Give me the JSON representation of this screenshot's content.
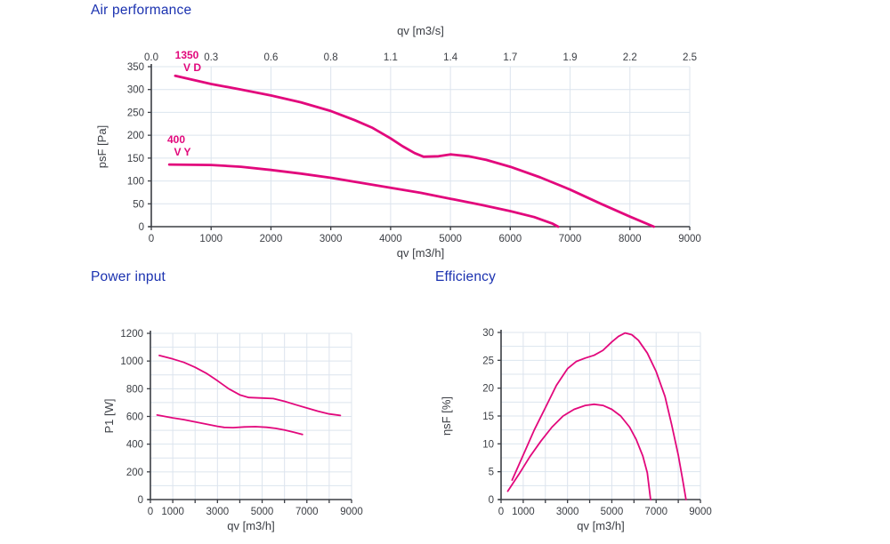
{
  "colors": {
    "title": "#1b32b0",
    "curve": "#e2087c",
    "grid": "#dce4ee",
    "axis": "#3b3e44",
    "tick_text": "#3b3e44"
  },
  "chart_data": [
    {
      "id": "air",
      "type": "line",
      "title": "Air performance",
      "xlabel": "qv [m3/h]",
      "xlabel_top": "qv [m3/s]",
      "ylabel": "psF [Pa]",
      "xlim": [
        0,
        9000
      ],
      "ylim": [
        0,
        350
      ],
      "x_grid_step": 1000,
      "y_grid_step": 50,
      "x_tick_mark_step": 1000,
      "grid": true,
      "legend_position": "on-curve",
      "x_ticks": [
        {
          "v": 0,
          "label": "0"
        },
        {
          "v": 1000,
          "label": "1000"
        },
        {
          "v": 2000,
          "label": "2000"
        },
        {
          "v": 3000,
          "label": "3000"
        },
        {
          "v": 4000,
          "label": "4000"
        },
        {
          "v": 5000,
          "label": "5000"
        },
        {
          "v": 6000,
          "label": "6000"
        },
        {
          "v": 7000,
          "label": "7000"
        },
        {
          "v": 8000,
          "label": "8000"
        },
        {
          "v": 9000,
          "label": "9000"
        }
      ],
      "x_top_ticks": [
        {
          "v": 0,
          "label": "0.0"
        },
        {
          "v": 1000,
          "label": "0.3"
        },
        {
          "v": 2000,
          "label": "0.6"
        },
        {
          "v": 3000,
          "label": "0.8"
        },
        {
          "v": 4000,
          "label": "1.1"
        },
        {
          "v": 5000,
          "label": "1.4"
        },
        {
          "v": 6000,
          "label": "1.7"
        },
        {
          "v": 7000,
          "label": "1.9"
        },
        {
          "v": 8000,
          "label": "2.2"
        },
        {
          "v": 9000,
          "label": "2.5"
        }
      ],
      "y_ticks": [
        {
          "v": 0,
          "label": "0"
        },
        {
          "v": 50,
          "label": "50"
        },
        {
          "v": 100,
          "label": "100"
        },
        {
          "v": 150,
          "label": "150"
        },
        {
          "v": 200,
          "label": "200"
        },
        {
          "v": 250,
          "label": "250"
        },
        {
          "v": 300,
          "label": "300"
        },
        {
          "v": 350,
          "label": "350"
        }
      ],
      "series": [
        {
          "name": "1350 V D",
          "label_lines": [
            "1350",
            "V D"
          ],
          "points": [
            [
              400,
              330
            ],
            [
              1000,
              312
            ],
            [
              1500,
              300
            ],
            [
              2000,
              287
            ],
            [
              2500,
              272
            ],
            [
              3000,
              253
            ],
            [
              3400,
              233
            ],
            [
              3700,
              216
            ],
            [
              4000,
              193
            ],
            [
              4200,
              176
            ],
            [
              4400,
              161
            ],
            [
              4550,
              153
            ],
            [
              4800,
              154
            ],
            [
              5000,
              158
            ],
            [
              5300,
              154
            ],
            [
              5600,
              146
            ],
            [
              6000,
              131
            ],
            [
              6500,
              108
            ],
            [
              7000,
              81
            ],
            [
              7500,
              51
            ],
            [
              8000,
              22
            ],
            [
              8400,
              0
            ]
          ]
        },
        {
          "name": "400 V Y",
          "label_lines": [
            "400",
            "V Y"
          ],
          "points": [
            [
              300,
              136
            ],
            [
              1000,
              135
            ],
            [
              1500,
              131
            ],
            [
              2000,
              124
            ],
            [
              2500,
              116
            ],
            [
              3000,
              107
            ],
            [
              3500,
              96
            ],
            [
              4000,
              85
            ],
            [
              4500,
              74
            ],
            [
              5000,
              61
            ],
            [
              5500,
              48
            ],
            [
              6000,
              34
            ],
            [
              6400,
              21
            ],
            [
              6700,
              7
            ],
            [
              6800,
              0
            ]
          ]
        }
      ]
    },
    {
      "id": "power",
      "type": "line",
      "title": "Power input",
      "xlabel": "qv [m3/h]",
      "ylabel": "P1 [W]",
      "xlim": [
        0,
        9000
      ],
      "ylim": [
        0,
        1200
      ],
      "x_grid_step": 1000,
      "y_grid_step": 100,
      "x_tick_mark_step": 1000,
      "grid": true,
      "x_ticks": [
        {
          "v": 0,
          "label": "0"
        },
        {
          "v": 1000,
          "label": "1000"
        },
        {
          "v": 3000,
          "label": "3000"
        },
        {
          "v": 5000,
          "label": "5000"
        },
        {
          "v": 7000,
          "label": "7000"
        },
        {
          "v": 9000,
          "label": "9000"
        }
      ],
      "y_ticks": [
        {
          "v": 0,
          "label": "0"
        },
        {
          "v": 200,
          "label": "200"
        },
        {
          "v": 400,
          "label": "400"
        },
        {
          "v": 600,
          "label": "600"
        },
        {
          "v": 800,
          "label": "800"
        },
        {
          "v": 1000,
          "label": "1000"
        },
        {
          "v": 1200,
          "label": "1200"
        }
      ],
      "series": [
        {
          "name": "1350 V D",
          "label_lines": [],
          "points": [
            [
              400,
              1040
            ],
            [
              1000,
              1015
            ],
            [
              1500,
              990
            ],
            [
              2000,
              955
            ],
            [
              2500,
              912
            ],
            [
              3000,
              858
            ],
            [
              3500,
              800
            ],
            [
              4000,
              756
            ],
            [
              4400,
              737
            ],
            [
              5000,
              733
            ],
            [
              5500,
              729
            ],
            [
              6000,
              709
            ],
            [
              6500,
              685
            ],
            [
              7000,
              661
            ],
            [
              7500,
              638
            ],
            [
              8000,
              618
            ],
            [
              8500,
              607
            ]
          ]
        },
        {
          "name": "400 V Y",
          "label_lines": [],
          "points": [
            [
              300,
              610
            ],
            [
              1000,
              590
            ],
            [
              1500,
              577
            ],
            [
              2000,
              561
            ],
            [
              2500,
              545
            ],
            [
              3000,
              529
            ],
            [
              3300,
              521
            ],
            [
              3700,
              519
            ],
            [
              4200,
              524
            ],
            [
              4700,
              526
            ],
            [
              5200,
              522
            ],
            [
              5600,
              514
            ],
            [
              6000,
              502
            ],
            [
              6400,
              487
            ],
            [
              6800,
              470
            ]
          ]
        }
      ]
    },
    {
      "id": "eff",
      "type": "line",
      "title": "Efficiency",
      "xlabel": "qv [m3/h]",
      "ylabel": "ηsF [%]",
      "xlim": [
        0,
        9000
      ],
      "ylim": [
        0,
        30
      ],
      "x_grid_step": 1000,
      "y_grid_step": 2.5,
      "x_tick_mark_step": 1000,
      "grid": true,
      "x_ticks": [
        {
          "v": 0,
          "label": "0"
        },
        {
          "v": 1000,
          "label": "1000"
        },
        {
          "v": 3000,
          "label": "3000"
        },
        {
          "v": 5000,
          "label": "5000"
        },
        {
          "v": 7000,
          "label": "7000"
        },
        {
          "v": 9000,
          "label": "9000"
        }
      ],
      "y_ticks": [
        {
          "v": 0,
          "label": "0"
        },
        {
          "v": 5,
          "label": "5"
        },
        {
          "v": 10,
          "label": "10"
        },
        {
          "v": 15,
          "label": "15"
        },
        {
          "v": 20,
          "label": "20"
        },
        {
          "v": 25,
          "label": "25"
        },
        {
          "v": 30,
          "label": "30"
        }
      ],
      "series": [
        {
          "name": "1350 V D",
          "label_lines": [],
          "points": [
            [
              500,
              3.5
            ],
            [
              1000,
              8
            ],
            [
              1500,
              12.5
            ],
            [
              2000,
              16.5
            ],
            [
              2500,
              20.5
            ],
            [
              3000,
              23.5
            ],
            [
              3400,
              24.8
            ],
            [
              3800,
              25.4
            ],
            [
              4200,
              25.9
            ],
            [
              4600,
              26.8
            ],
            [
              5000,
              28.3
            ],
            [
              5300,
              29.3
            ],
            [
              5600,
              29.9
            ],
            [
              5900,
              29.6
            ],
            [
              6200,
              28.6
            ],
            [
              6600,
              26.3
            ],
            [
              7000,
              23
            ],
            [
              7400,
              18.5
            ],
            [
              7700,
              13.5
            ],
            [
              8000,
              8
            ],
            [
              8200,
              3.5
            ],
            [
              8350,
              0
            ]
          ]
        },
        {
          "name": "400 V Y",
          "label_lines": [],
          "points": [
            [
              300,
              1.5
            ],
            [
              800,
              4.5
            ],
            [
              1300,
              7.7
            ],
            [
              1800,
              10.5
            ],
            [
              2300,
              13
            ],
            [
              2800,
              15
            ],
            [
              3300,
              16.2
            ],
            [
              3800,
              16.9
            ],
            [
              4200,
              17.1
            ],
            [
              4600,
              16.9
            ],
            [
              5000,
              16.2
            ],
            [
              5400,
              15
            ],
            [
              5800,
              13
            ],
            [
              6100,
              10.8
            ],
            [
              6400,
              7.8
            ],
            [
              6600,
              4.8
            ],
            [
              6750,
              0
            ]
          ]
        }
      ]
    }
  ]
}
